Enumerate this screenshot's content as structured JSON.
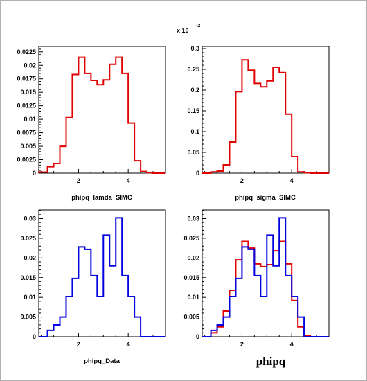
{
  "colors": {
    "red": "#e00000",
    "blue": "#0000e0",
    "frame": "#000000"
  },
  "chart_data": [
    {
      "type": "histogram",
      "xlabel": "phipq_lamda_SIMC",
      "xlim": [
        0.4,
        5.5
      ],
      "xticks": [
        2,
        4
      ],
      "ylim": [
        0,
        0.0235
      ],
      "yticks": [
        "0",
        "0.0025",
        "0.005",
        "0.0075",
        "0.01",
        "0.0125",
        "0.015",
        "0.0175",
        "0.02",
        "0.0225"
      ],
      "ytick_values": [
        0,
        0.0025,
        0.005,
        0.0075,
        0.01,
        0.0125,
        0.015,
        0.0175,
        0.02,
        0.0225
      ],
      "bin_edges": [
        0.4,
        0.75,
        1.0,
        1.25,
        1.5,
        1.75,
        2.0,
        2.25,
        2.5,
        2.75,
        3.0,
        3.25,
        3.5,
        3.75,
        4.0,
        4.25,
        4.5,
        4.75,
        5.0,
        5.5
      ],
      "series": [
        {
          "color": "red",
          "values": [
            0.0002,
            0.0012,
            0.0018,
            0.005,
            0.0103,
            0.0183,
            0.0215,
            0.0185,
            0.0172,
            0.0164,
            0.0173,
            0.0202,
            0.0215,
            0.0185,
            0.0093,
            0.0023,
            0.0003,
            0.0001,
            0
          ]
        }
      ]
    },
    {
      "type": "histogram",
      "xlabel": "phipq_sigma_SIMC",
      "exponent_label": "x 10",
      "exponent_power": "-2",
      "xlim": [
        0.4,
        5.5
      ],
      "xticks": [
        2,
        4
      ],
      "ylim": [
        0,
        0.305
      ],
      "yticks": [
        "0",
        "0.05",
        "0.1",
        "0.15",
        "0.2",
        "0.25",
        "0.3"
      ],
      "ytick_values": [
        0,
        0.05,
        0.1,
        0.15,
        0.2,
        0.25,
        0.3
      ],
      "bin_edges": [
        0.4,
        0.75,
        1.0,
        1.25,
        1.5,
        1.75,
        2.0,
        2.25,
        2.5,
        2.75,
        3.0,
        3.25,
        3.5,
        3.75,
        4.0,
        4.25,
        4.5,
        4.75,
        5.0,
        5.5
      ],
      "series": [
        {
          "color": "red",
          "values": [
            0,
            0.003,
            0.005,
            0.02,
            0.075,
            0.196,
            0.273,
            0.248,
            0.216,
            0.208,
            0.222,
            0.255,
            0.242,
            0.142,
            0.04,
            0.003,
            0.001,
            0,
            0
          ]
        }
      ]
    },
    {
      "type": "histogram",
      "xlabel": "phipq_Data",
      "xlim": [
        0.4,
        5.5
      ],
      "xticks": [
        2,
        4
      ],
      "ylim": [
        0,
        0.0322
      ],
      "yticks": [
        "0",
        "0.005",
        "0.01",
        "0.015",
        "0.02",
        "0.025",
        "0.03"
      ],
      "ytick_values": [
        0,
        0.005,
        0.01,
        0.015,
        0.02,
        0.025,
        0.03
      ],
      "bin_edges": [
        0.4,
        0.75,
        1.0,
        1.25,
        1.5,
        1.75,
        2.0,
        2.25,
        2.5,
        2.75,
        3.0,
        3.25,
        3.5,
        3.75,
        4.0,
        4.25,
        4.5,
        4.75,
        5.0,
        5.5
      ],
      "series": [
        {
          "color": "blue",
          "values": [
            0,
            0.0016,
            0.003,
            0.005,
            0.0102,
            0.0148,
            0.0228,
            0.0222,
            0.0155,
            0.0102,
            0.0258,
            0.018,
            0.0302,
            0.0155,
            0.0102,
            0.005,
            0,
            0,
            0
          ]
        }
      ]
    },
    {
      "type": "histogram",
      "title": "phipq",
      "xlim": [
        0.4,
        5.5
      ],
      "xticks": [
        2,
        4
      ],
      "ylim": [
        0,
        0.0322
      ],
      "yticks": [
        "0",
        "0.005",
        "0.01",
        "0.015",
        "0.02",
        "0.025",
        "0.03"
      ],
      "ytick_values": [
        0,
        0.005,
        0.01,
        0.015,
        0.02,
        0.025,
        0.03
      ],
      "bin_edges": [
        0.4,
        0.75,
        1.0,
        1.25,
        1.5,
        1.75,
        2.0,
        2.25,
        2.5,
        2.75,
        3.0,
        3.25,
        3.5,
        3.75,
        4.0,
        4.25,
        4.5,
        4.75,
        5.0,
        5.5
      ],
      "series": [
        {
          "color": "red",
          "values": [
            0,
            0.001,
            0.0025,
            0.0065,
            0.0118,
            0.0195,
            0.0242,
            0.0225,
            0.0185,
            0.0178,
            0.0183,
            0.0218,
            0.0242,
            0.0185,
            0.0092,
            0.0025,
            0.0003,
            0,
            0
          ]
        },
        {
          "color": "blue",
          "values": [
            0,
            0.0016,
            0.003,
            0.005,
            0.0102,
            0.0148,
            0.0228,
            0.0222,
            0.0155,
            0.0102,
            0.0258,
            0.018,
            0.0302,
            0.0155,
            0.0102,
            0.005,
            0,
            0,
            0
          ]
        }
      ]
    }
  ]
}
